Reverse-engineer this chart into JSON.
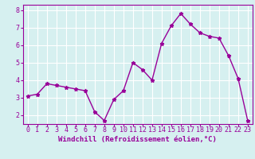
{
  "x": [
    0,
    1,
    2,
    3,
    4,
    5,
    6,
    7,
    8,
    9,
    10,
    11,
    12,
    13,
    14,
    15,
    16,
    17,
    18,
    19,
    20,
    21,
    22,
    23
  ],
  "y": [
    3.1,
    3.2,
    3.8,
    3.7,
    3.6,
    3.5,
    3.4,
    2.2,
    1.7,
    2.9,
    3.4,
    5.0,
    4.6,
    4.0,
    6.1,
    7.1,
    7.8,
    7.2,
    6.7,
    6.5,
    6.4,
    5.4,
    4.1,
    1.7
  ],
  "line_color": "#990099",
  "marker": "*",
  "marker_size": 3.5,
  "xlabel": "Windchill (Refroidissement éolien,°C)",
  "ylabel": "",
  "xlim": [
    -0.5,
    23.5
  ],
  "ylim": [
    1.5,
    8.3
  ],
  "yticks": [
    2,
    3,
    4,
    5,
    6,
    7,
    8
  ],
  "xticks": [
    0,
    1,
    2,
    3,
    4,
    5,
    6,
    7,
    8,
    9,
    10,
    11,
    12,
    13,
    14,
    15,
    16,
    17,
    18,
    19,
    20,
    21,
    22,
    23
  ],
  "bg_color": "#d6f0f0",
  "grid_color": "#ffffff",
  "tick_color": "#990099",
  "label_color": "#990099",
  "xlabel_fontsize": 6.5,
  "tick_fontsize": 6.0,
  "line_width": 1.0
}
